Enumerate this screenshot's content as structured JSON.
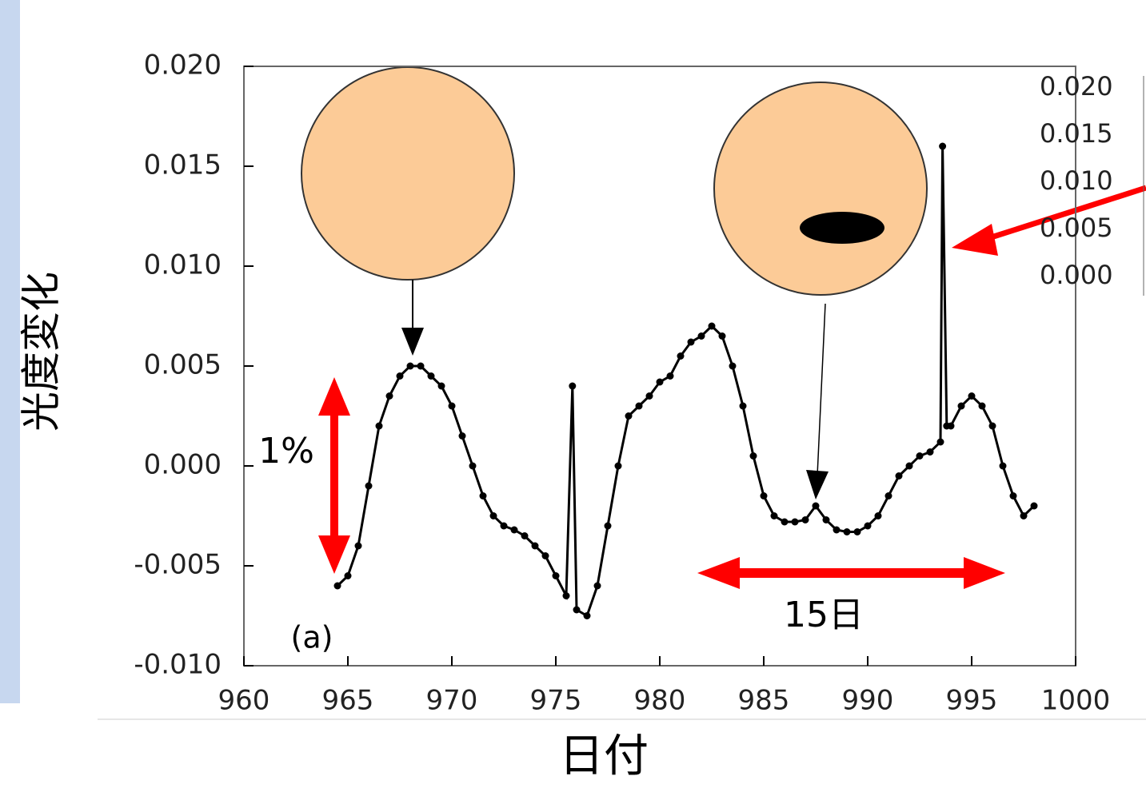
{
  "chart_data": {
    "type": "line",
    "y_label": "光度変化",
    "x_label": "日付",
    "annotations": [
      "1%",
      "15日",
      "(a)"
    ],
    "inset_labels": [
      "0.020",
      "0.015",
      "0.010",
      "0.005",
      "0.000"
    ],
    "xlim": [
      960,
      1000
    ],
    "xticks": [
      960,
      965,
      970,
      975,
      980,
      985,
      990,
      995,
      1000
    ],
    "ylim": [
      -0.01,
      0.02
    ],
    "yticks": [
      {
        "value": -0.01,
        "label": "-0.010"
      },
      {
        "value": -0.005,
        "label": "-0.005"
      },
      {
        "value": 0,
        "label": "0.000"
      },
      {
        "value": 0.005,
        "label": "0.005"
      },
      {
        "value": 0.01,
        "label": "0.010"
      },
      {
        "value": 0.015,
        "label": "0.015"
      },
      {
        "value": 0.02,
        "label": "0.020"
      }
    ],
    "series": [
      {
        "color": "#000000",
        "x": [
          964.5,
          965,
          965.5,
          966,
          966.5,
          967,
          967.5,
          968,
          968.5,
          969,
          969.5,
          970,
          970.5,
          971,
          971.5,
          972,
          972.5,
          973,
          973.5,
          974,
          974.5,
          975,
          975.5,
          975.8,
          976,
          976.5,
          977,
          977.5,
          978,
          978.5,
          979,
          979.5,
          980,
          980.5,
          981,
          981.5,
          982,
          982.5,
          983,
          983.5,
          984,
          984.5,
          985,
          985.5,
          986,
          986.5,
          987,
          987.5,
          988,
          988.5,
          989,
          989.5,
          990,
          990.5,
          991,
          991.5,
          992,
          992.5,
          993,
          993.5,
          993.6,
          993.8,
          994,
          994.5,
          995,
          995.5,
          996,
          996.5,
          997,
          997.5,
          998
        ],
        "values": [
          -0.006,
          -0.0055,
          -0.004,
          -0.001,
          0.002,
          0.0035,
          0.0045,
          0.005,
          0.005,
          0.0045,
          0.004,
          0.003,
          0.0015,
          0,
          -0.0015,
          -0.0025,
          -0.003,
          -0.0032,
          -0.0035,
          -0.004,
          -0.0045,
          -0.0055,
          -0.0065,
          0.004,
          -0.0072,
          -0.0075,
          -0.006,
          -0.003,
          0,
          0.0025,
          0.003,
          0.0035,
          0.0042,
          0.0045,
          0.0055,
          0.0062,
          0.0065,
          0.007,
          0.0065,
          0.005,
          0.003,
          0.0005,
          -0.0015,
          -0.0025,
          -0.0028,
          -0.0028,
          -0.0027,
          -0.002,
          -0.0027,
          -0.0032,
          -0.0033,
          -0.0033,
          -0.003,
          -0.0025,
          -0.0015,
          -0.0005,
          0,
          0.0005,
          0.0007,
          0.0012,
          0.016,
          0.002,
          0.002,
          0.003,
          0.0035,
          0.003,
          0.002,
          0,
          -0.0015,
          -0.0025,
          -0.002
        ]
      }
    ]
  }
}
